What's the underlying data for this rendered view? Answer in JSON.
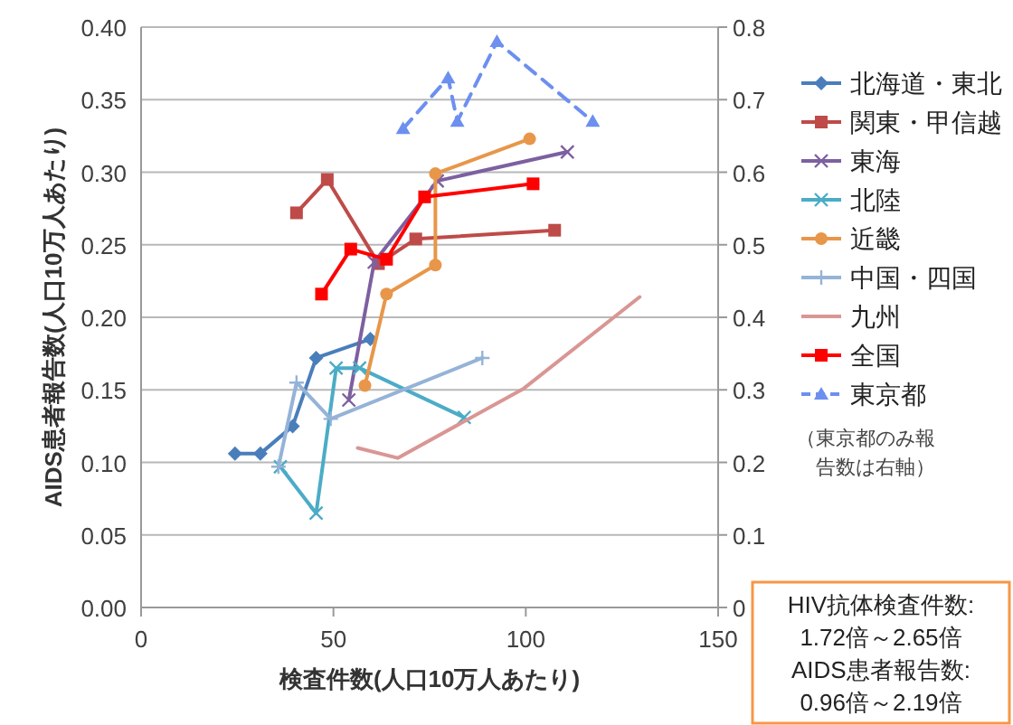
{
  "chart_data": {
    "type": "line",
    "xlabel": "検査件数(人口10万人あたり)",
    "ylabel": "AIDS患者報告数(人口10万人あたり)",
    "xlim": [
      0,
      150
    ],
    "xticks": [
      0,
      50,
      100,
      150
    ],
    "ylim": [
      0,
      0.4
    ],
    "yticks": [
      {
        "value": 0,
        "label": "0.00"
      },
      {
        "value": 0.05,
        "label": "0.05"
      },
      {
        "value": 0.1,
        "label": "0.10"
      },
      {
        "value": 0.15,
        "label": "0.15"
      },
      {
        "value": 0.2,
        "label": "0.20"
      },
      {
        "value": 0.25,
        "label": "0.25"
      },
      {
        "value": 0.3,
        "label": "0.30"
      },
      {
        "value": 0.35,
        "label": "0.35"
      },
      {
        "value": 0.4,
        "label": "0.40"
      }
    ],
    "y2lim": [
      0,
      0.8
    ],
    "y2ticks": [
      0,
      0.1,
      0.2,
      0.3,
      0.4,
      0.5,
      0.6,
      0.7,
      0.8
    ],
    "grid": "y",
    "legend": "right",
    "series": [
      {
        "name": "北海道・東北",
        "color": "#4a7ebb",
        "marker": "diamond",
        "x": [
          24.4,
          31.0,
          39.4,
          45.5,
          59.6
        ],
        "values": [
          0.106,
          0.106,
          0.125,
          0.172,
          0.185
        ]
      },
      {
        "name": "関東・甲信越",
        "color": "#be4b48",
        "marker": "square",
        "x": [
          40.4,
          48.4,
          61.7,
          71.4,
          107.5
        ],
        "values": [
          0.272,
          0.295,
          0.237,
          0.254,
          0.26
        ]
      },
      {
        "name": "東海",
        "color": "#7d60a0",
        "marker": "cross",
        "x": [
          54.0,
          60.6,
          77.0,
          110.8
        ],
        "values": [
          0.143,
          0.238,
          0.294,
          0.314
        ]
      },
      {
        "name": "北陸",
        "color": "#4bacc6",
        "marker": "cross",
        "x": [
          36.2,
          45.5,
          50.7,
          56.8,
          84.0
        ],
        "values": [
          0.097,
          0.065,
          0.165,
          0.165,
          0.131
        ]
      },
      {
        "name": "近畿",
        "color": "#e8964a",
        "marker": "circle",
        "x": [
          58.2,
          63.8,
          76.5,
          76.5,
          101.0
        ],
        "values": [
          0.153,
          0.216,
          0.236,
          0.299,
          0.323
        ]
      },
      {
        "name": "中国・四国",
        "color": "#95b3d7",
        "marker": "plus",
        "x": [
          35.7,
          40.4,
          49.3,
          88.7
        ],
        "values": [
          0.097,
          0.155,
          0.13,
          0.172
        ]
      },
      {
        "name": "九州",
        "color": "#d99694",
        "marker": "none",
        "x": [
          56.3,
          66.7,
          99.5,
          129.6
        ],
        "values": [
          0.11,
          0.103,
          0.151,
          0.214
        ]
      },
      {
        "name": "全国",
        "color": "#ff0000",
        "marker": "square",
        "x": [
          46.9,
          54.5,
          63.8,
          73.7,
          101.9
        ],
        "values": [
          0.216,
          0.247,
          0.24,
          0.283,
          0.292
        ]
      },
      {
        "name": "東京都",
        "color": "#6d8ff0",
        "marker": "triangle",
        "line_style": "dashed",
        "axis": "y2",
        "x": [
          68.1,
          79.8,
          82.2,
          92.5,
          117.4
        ],
        "values": [
          0.66,
          0.73,
          0.67,
          0.78,
          0.67
        ]
      }
    ],
    "annotations": [
      "（東京都のみ報告数は右軸）",
      "HIV抗体検査件数:\n1.72倍～2.65倍\nAIDS患者報告数:\n0.96倍～2.19倍"
    ]
  }
}
